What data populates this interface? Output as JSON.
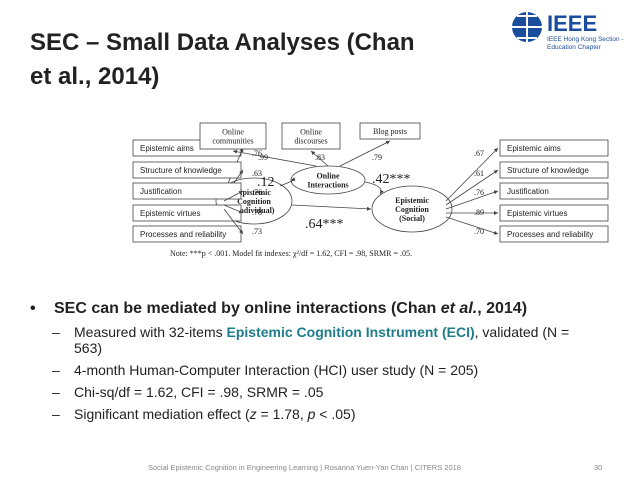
{
  "header": {
    "title": "SEC – Small Data Analyses (Chan et al., 2014)",
    "logo": {
      "name": "IEEE",
      "line1": "IEEE Hong Kong Section -",
      "line2": "Education Chapter"
    }
  },
  "diagram": {
    "left_indicators": [
      {
        "label": "Epistemic aims",
        "loading": ".76"
      },
      {
        "label": "Structure of knowledge",
        "loading": ".63"
      },
      {
        "label": "Justification",
        "loading": ".76"
      },
      {
        "label": "Epistemic virtues",
        "loading": ".78"
      },
      {
        "label": "Processes and reliability",
        "loading": ".73"
      }
    ],
    "right_indicators": [
      {
        "label": "Epistemic aims",
        "loading": ".67"
      },
      {
        "label": "Structure of knowledge",
        "loading": ".61"
      },
      {
        "label": "Justification",
        "loading": ".76"
      },
      {
        "label": "Epistemic virtues",
        "loading": ".89"
      },
      {
        "label": "Processes and reliability",
        "loading": ".70"
      }
    ],
    "top_indicators": [
      {
        "label": [
          "Online",
          "communities"
        ],
        "loading": ".99"
      },
      {
        "label": [
          "Online",
          "discourses"
        ],
        "loading": ".83"
      },
      {
        "label": [
          "Blog posts"
        ],
        "loading": ".79"
      }
    ],
    "latents": {
      "individual": [
        "Epistemic",
        "Cognition",
        "(Individual)"
      ],
      "mediator": [
        "Online",
        "Interactions"
      ],
      "social": [
        "Epistemic",
        "Cognition",
        "(Social)"
      ]
    },
    "paths": {
      "individual_to_mediator": ".12",
      "mediator_to_social": ".42***",
      "individual_to_social": ".64***"
    },
    "note": "Note: ***p < .001. Model fit indexes: χ²/df = 1.62, CFI = .98, SRMR = .05."
  },
  "bullets": {
    "main": [
      "SEC can be mediated by online interactions (Chan ",
      "et al.",
      ", 2014)"
    ],
    "sub": [
      [
        "Measured with 32-items ",
        "Epistemic Cognition Instrument (ECI)",
        ", validated (N = 563)"
      ],
      [
        "4-month Human-Computer Interaction (HCI) user study (N = 205)"
      ],
      [
        "Chi-sq/df = 1.62, CFI = .98, SRMR = .05"
      ],
      [
        "Significant mediation effect (",
        "z",
        " = 1.78, ",
        "p",
        " < .05)"
      ]
    ]
  },
  "footer": {
    "text": "Social Epistemic Cognition in Engineering Learning | Rosanna Yuen-Yan Chan | CITERS 2018",
    "page": "30"
  }
}
